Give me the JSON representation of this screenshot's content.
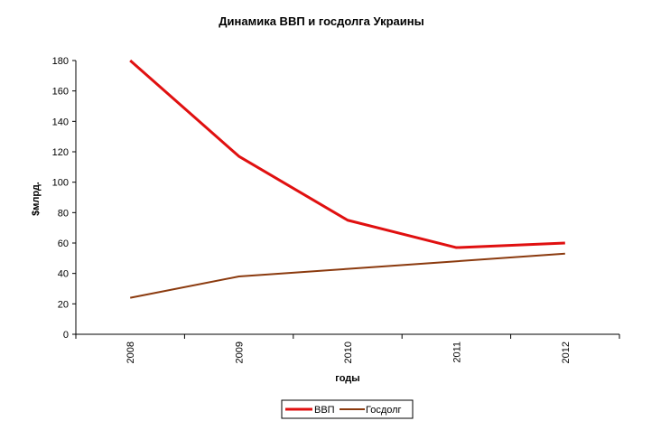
{
  "chart_data": {
    "type": "line",
    "title": "Динамика ВВП и госдолга Украины",
    "xlabel": "годы",
    "ylabel": "$млрд.",
    "categories": [
      "2008",
      "2009",
      "2010",
      "2011",
      "2012"
    ],
    "ylim": [
      0,
      180
    ],
    "yticks": [
      0,
      20,
      40,
      60,
      80,
      100,
      120,
      140,
      160,
      180
    ],
    "grid": false,
    "legend_position": "bottom",
    "series": [
      {
        "name": "ВВП",
        "values": [
          180,
          117,
          75,
          57,
          60
        ],
        "color": "#e01010"
      },
      {
        "name": "Госдолг",
        "values": [
          24,
          38,
          43,
          48,
          53
        ],
        "color": "#8b3a0e"
      }
    ]
  }
}
